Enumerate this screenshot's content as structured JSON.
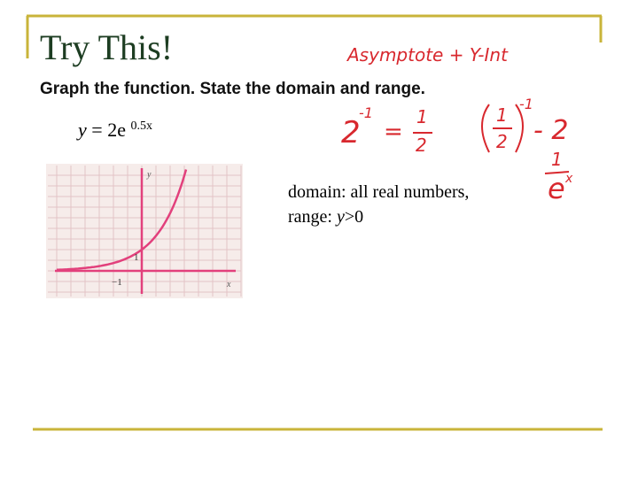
{
  "header": {
    "title": "Try This!"
  },
  "body": {
    "instruction": "Graph the function. State the domain and range.",
    "equation": {
      "lhs": "y",
      "eq": "=",
      "coef": "2e",
      "exponent": "0.5x"
    },
    "graph": {
      "y_label": "y",
      "x_label": "x",
      "tick_y": "1",
      "tick_x": "−1"
    },
    "answer": {
      "domain": "domain: all real numbers,",
      "range_prefix": "range: ",
      "range_var": "y",
      "range_rest": ">0"
    }
  },
  "annotations": {
    "note": "Asymptote + Y-Int",
    "eq1": {
      "base": "2",
      "exp": "-1",
      "eq": "=",
      "num": "1",
      "den": "2"
    },
    "eq2": {
      "num": "1",
      "den": "2",
      "exp": "-1",
      "eq": "- 2"
    },
    "eq3": {
      "num": "1",
      "base": "e",
      "exp": "x"
    }
  }
}
